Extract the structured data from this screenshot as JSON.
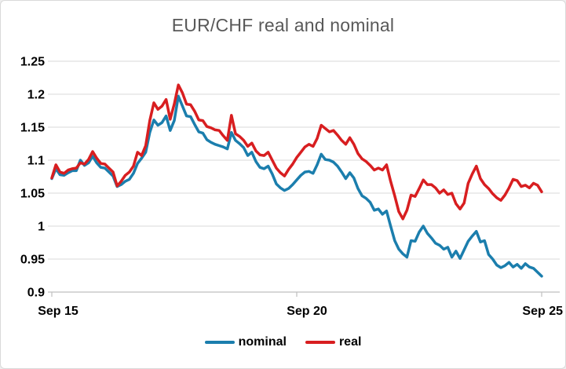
{
  "title": "EUR/CHF real and nominal",
  "styles": {
    "title_color": "#595959",
    "grid_color": "#D9D9D9",
    "axis_color": "#BFBFBF",
    "label_color": "#000000",
    "background": "#FFFFFF",
    "border_color": "#D9D9D9",
    "nominal_color": "#1B7EAD",
    "real_color": "#D81E20"
  },
  "legend": {
    "items": [
      {
        "label": "nominal",
        "color": "#1B7EAD"
      },
      {
        "label": "real",
        "color": "#D81E20"
      }
    ]
  },
  "chart_data": {
    "type": "line",
    "title": "EUR/CHF real and nominal",
    "grid": "horizontal",
    "legend_position": "bottom",
    "x_axis": {
      "tick_labels": [
        "Sep 15",
        "Sep 20",
        "Sep 25"
      ],
      "tick_positions": [
        0,
        60,
        120
      ],
      "points_per_series": 121
    },
    "y_axis": {
      "min": 0.9,
      "max": 1.25,
      "ticks": [
        0.9,
        0.95,
        1,
        1.05,
        1.1,
        1.15,
        1.2,
        1.25
      ],
      "tick_labels": [
        "0.9",
        "0.95",
        "1",
        "1.05",
        "1.1",
        "1.15",
        "1.2",
        "1.25"
      ]
    },
    "series": [
      {
        "name": "nominal",
        "color": "#1B7EAD",
        "values": [
          1.072,
          1.087,
          1.078,
          1.077,
          1.081,
          1.084,
          1.084,
          1.1,
          1.092,
          1.096,
          1.106,
          1.096,
          1.089,
          1.088,
          1.082,
          1.076,
          1.06,
          1.063,
          1.068,
          1.071,
          1.08,
          1.095,
          1.103,
          1.112,
          1.142,
          1.161,
          1.153,
          1.157,
          1.167,
          1.145,
          1.16,
          1.197,
          1.182,
          1.167,
          1.166,
          1.154,
          1.143,
          1.141,
          1.131,
          1.127,
          1.124,
          1.122,
          1.12,
          1.117,
          1.142,
          1.13,
          1.125,
          1.119,
          1.107,
          1.112,
          1.098,
          1.089,
          1.087,
          1.091,
          1.079,
          1.064,
          1.058,
          1.054,
          1.057,
          1.063,
          1.07,
          1.077,
          1.082,
          1.083,
          1.08,
          1.093,
          1.109,
          1.101,
          1.1,
          1.097,
          1.091,
          1.082,
          1.072,
          1.081,
          1.073,
          1.057,
          1.046,
          1.042,
          1.036,
          1.024,
          1.026,
          1.018,
          1.023,
          1.0,
          0.978,
          0.965,
          0.958,
          0.953,
          0.978,
          0.977,
          0.991,
          1.0,
          0.989,
          0.982,
          0.974,
          0.971,
          0.965,
          0.968,
          0.953,
          0.962,
          0.951,
          0.964,
          0.977,
          0.985,
          0.992,
          0.976,
          0.978,
          0.957,
          0.95,
          0.941,
          0.937,
          0.94,
          0.945,
          0.938,
          0.942,
          0.936,
          0.943,
          0.938,
          0.936,
          0.93,
          0.924
        ]
      },
      {
        "name": "real",
        "color": "#D81E20",
        "values": [
          1.073,
          1.093,
          1.082,
          1.08,
          1.085,
          1.087,
          1.088,
          1.096,
          1.094,
          1.101,
          1.113,
          1.103,
          1.095,
          1.094,
          1.088,
          1.082,
          1.061,
          1.068,
          1.077,
          1.082,
          1.091,
          1.112,
          1.107,
          1.122,
          1.16,
          1.187,
          1.177,
          1.182,
          1.192,
          1.162,
          1.185,
          1.214,
          1.202,
          1.185,
          1.184,
          1.174,
          1.161,
          1.16,
          1.151,
          1.149,
          1.146,
          1.145,
          1.137,
          1.13,
          1.168,
          1.14,
          1.136,
          1.13,
          1.121,
          1.126,
          1.114,
          1.108,
          1.107,
          1.112,
          1.1,
          1.088,
          1.081,
          1.076,
          1.086,
          1.094,
          1.104,
          1.112,
          1.12,
          1.124,
          1.121,
          1.133,
          1.153,
          1.148,
          1.143,
          1.145,
          1.138,
          1.13,
          1.124,
          1.134,
          1.124,
          1.11,
          1.102,
          1.098,
          1.092,
          1.085,
          1.088,
          1.085,
          1.093,
          1.068,
          1.046,
          1.022,
          1.011,
          1.024,
          1.047,
          1.045,
          1.057,
          1.07,
          1.063,
          1.063,
          1.058,
          1.05,
          1.055,
          1.048,
          1.05,
          1.034,
          1.026,
          1.035,
          1.065,
          1.079,
          1.091,
          1.072,
          1.063,
          1.057,
          1.049,
          1.043,
          1.039,
          1.047,
          1.058,
          1.071,
          1.069,
          1.06,
          1.062,
          1.058,
          1.065,
          1.062,
          1.052
        ]
      }
    ]
  }
}
